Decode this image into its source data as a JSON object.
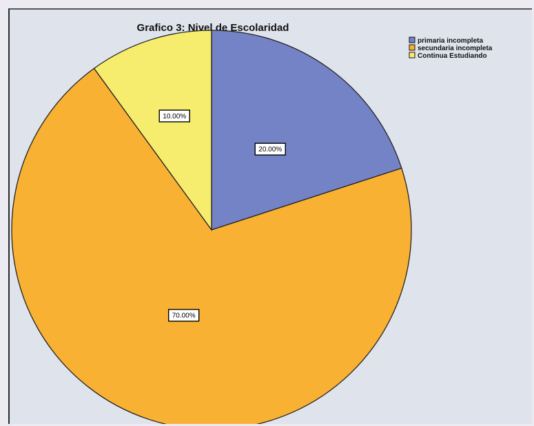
{
  "chart_data": {
    "type": "pie",
    "title": "Grafico 3: Nivel de Escolaridad",
    "categories": [
      "primaria incompleta",
      "secundaria incompleta",
      "Continua Estudiando"
    ],
    "values": [
      20.0,
      70.0,
      10.0
    ],
    "data_labels": [
      "20.00%",
      "70.00%",
      "10.00%"
    ],
    "colors": [
      "#7483c6",
      "#f8b133",
      "#f6ec6e"
    ],
    "legend_placement": "top-right",
    "start_angle": "12 o'clock",
    "direction": "clockwise"
  }
}
